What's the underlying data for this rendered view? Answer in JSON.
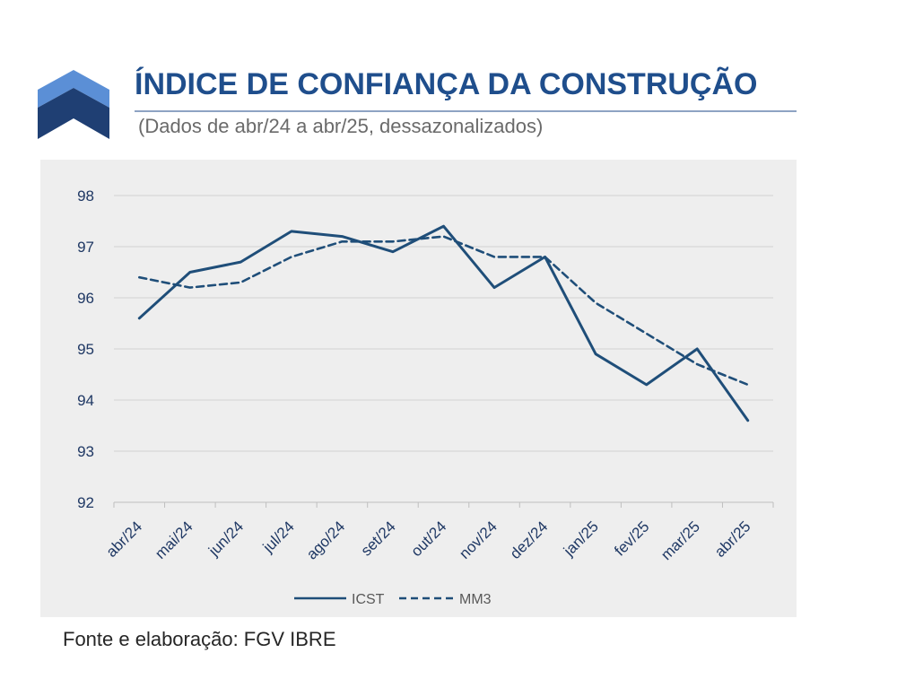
{
  "logo": {
    "icon": "chevron-logo-icon",
    "colors": {
      "light": "#5b8fd6",
      "dark": "#1f3f73"
    }
  },
  "chart_data": {
    "type": "line",
    "title": "ÍNDICE DE CONFIANÇA DA CONSTRUÇÃO",
    "subtitle": "(Dados de abr/24 a abr/25, dessazonalizados)",
    "categories": [
      "abr/24",
      "mai/24",
      "jun/24",
      "jul/24",
      "ago/24",
      "set/24",
      "out/24",
      "nov/24",
      "dez/24",
      "jan/25",
      "fev/25",
      "mar/25",
      "abr/25"
    ],
    "series": [
      {
        "name": "ICST",
        "dashed": false,
        "values": [
          95.6,
          96.5,
          96.7,
          97.3,
          97.2,
          96.9,
          97.4,
          96.2,
          96.8,
          94.9,
          94.3,
          95.0,
          93.6
        ]
      },
      {
        "name": "MM3",
        "dashed": true,
        "values": [
          96.4,
          96.2,
          96.3,
          96.8,
          97.1,
          97.1,
          97.2,
          96.8,
          96.8,
          95.9,
          95.3,
          94.7,
          94.3
        ]
      }
    ],
    "ylim": [
      92,
      98
    ],
    "yticks": [
      92,
      93,
      94,
      95,
      96,
      97,
      98
    ],
    "grid": true,
    "legend": "bottom",
    "colors": {
      "line": "#1f4e79",
      "plot_background": "#eeeeee",
      "gridline": "#d3d3d3",
      "tick_label": "#1f3864",
      "title": "#1f4e8c"
    }
  },
  "footer": {
    "source": "Fonte e elaboração: FGV IBRE"
  }
}
